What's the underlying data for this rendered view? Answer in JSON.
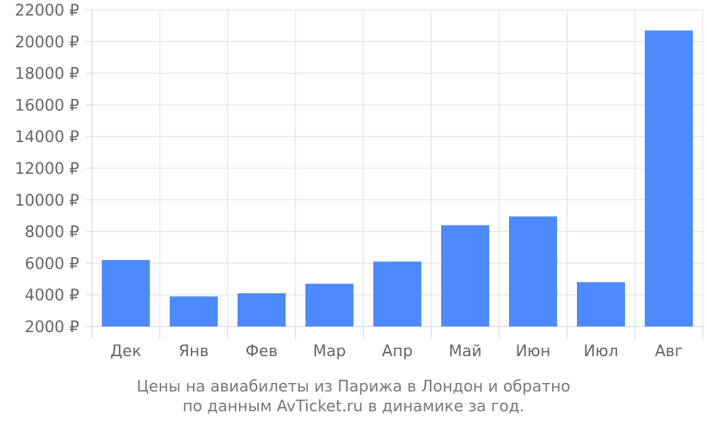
{
  "chart_data": {
    "type": "bar",
    "categories": [
      "Дек",
      "Янв",
      "Фев",
      "Мар",
      "Апр",
      "Май",
      "Июн",
      "Июл",
      "Авг"
    ],
    "values": [
      6200,
      3900,
      4100,
      4700,
      6100,
      8400,
      8950,
      4800,
      20700
    ],
    "ylim": [
      2000,
      22000
    ],
    "yticks": [
      2000,
      4000,
      6000,
      8000,
      10000,
      12000,
      14000,
      16000,
      18000,
      20000,
      22000
    ],
    "ytick_suffix": " ₽",
    "grid": true,
    "bar_color": "#4d8afc",
    "caption_line1": "Цены на авиабилеты из Парижа в Лондон и обратно",
    "caption_line2": "по данным AvTicket.ru в динамике за год."
  }
}
